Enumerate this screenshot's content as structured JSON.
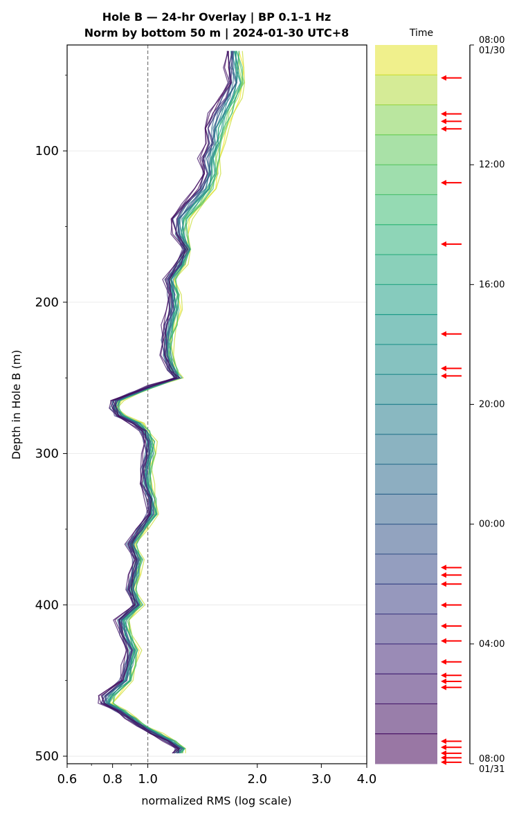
{
  "chart_data": {
    "type": "line",
    "title_line1": "Hole B — 24-hr Overlay  |  BP 0.1–1 Hz",
    "title_line2": "Norm by bottom 50 m  |  2024-01-30 UTC+8",
    "xlabel": "normalized RMS  (log scale)",
    "ylabel": "Depth in Hole B (m)",
    "x_scale": "log",
    "xlim": [
      0.6,
      4.0
    ],
    "ylim": [
      505,
      30
    ],
    "x_ticks": [
      0.6,
      0.8,
      1.0,
      2.0,
      3.0,
      4.0
    ],
    "x_tick_labels": [
      "0.6",
      "0.8",
      "1.0",
      "2.0",
      "3.0",
      "4.0"
    ],
    "y_ticks": [
      100,
      200,
      300,
      400,
      500
    ],
    "y_tick_labels": [
      "100",
      "200",
      "300",
      "400",
      "500"
    ],
    "reference_line_x": 1.0,
    "grid": "horizontal",
    "depth": [
      34,
      45,
      55,
      65,
      75,
      85,
      95,
      105,
      115,
      125,
      135,
      145,
      155,
      165,
      175,
      185,
      195,
      205,
      215,
      225,
      235,
      245,
      250,
      255,
      260,
      265,
      270,
      275,
      280,
      285,
      292,
      300,
      310,
      320,
      330,
      340,
      350,
      360,
      370,
      380,
      390,
      400,
      410,
      420,
      430,
      440,
      450,
      460,
      465,
      470,
      475,
      480,
      485,
      490,
      495,
      498
    ],
    "profile_start": [
      1.78,
      1.82,
      1.84,
      1.78,
      1.72,
      1.66,
      1.6,
      1.58,
      1.56,
      1.52,
      1.42,
      1.3,
      1.28,
      1.3,
      1.26,
      1.18,
      1.22,
      1.22,
      1.2,
      1.16,
      1.16,
      1.2,
      1.22,
      1.06,
      0.94,
      0.84,
      0.82,
      0.86,
      0.96,
      1.0,
      1.04,
      1.04,
      1.02,
      1.02,
      1.04,
      1.06,
      0.98,
      0.92,
      0.96,
      0.94,
      0.92,
      0.96,
      0.88,
      0.9,
      0.94,
      0.92,
      0.9,
      0.82,
      0.8,
      0.86,
      0.92,
      0.98,
      1.08,
      1.18,
      1.26,
      1.24
    ],
    "profile_end": [
      1.66,
      1.64,
      1.66,
      1.58,
      1.48,
      1.42,
      1.46,
      1.38,
      1.42,
      1.36,
      1.24,
      1.16,
      1.18,
      1.26,
      1.2,
      1.12,
      1.14,
      1.14,
      1.1,
      1.1,
      1.1,
      1.14,
      1.2,
      1.02,
      0.9,
      0.8,
      0.8,
      0.82,
      0.9,
      0.96,
      0.98,
      0.98,
      0.96,
      0.96,
      1.0,
      1.0,
      0.94,
      0.88,
      0.92,
      0.9,
      0.88,
      0.92,
      0.82,
      0.84,
      0.88,
      0.86,
      0.84,
      0.74,
      0.74,
      0.82,
      0.88,
      0.94,
      1.02,
      1.12,
      1.2,
      1.18
    ],
    "time_ticks": [
      "08:00\n01/30",
      "12:00",
      "16:00",
      "20:00",
      "00:00",
      "04:00",
      "08:00\n01/31"
    ],
    "time_label": "Time",
    "time_tick_hours": [
      0,
      4,
      8,
      12,
      16,
      20,
      24
    ],
    "time_bands": 24,
    "event_hours": [
      1.1,
      2.3,
      2.55,
      2.8,
      4.6,
      6.65,
      9.65,
      10.8,
      11.05,
      17.45,
      17.7,
      18.0,
      18.7,
      19.4,
      19.9,
      20.6,
      21.05,
      21.25,
      21.45,
      23.25,
      23.45,
      23.65,
      23.8,
      23.95
    ],
    "colors": {
      "line_dark": "#440154",
      "line_light": "#d2e21b",
      "reference_line": "#777777",
      "event_arrow": "#ff0000"
    }
  }
}
